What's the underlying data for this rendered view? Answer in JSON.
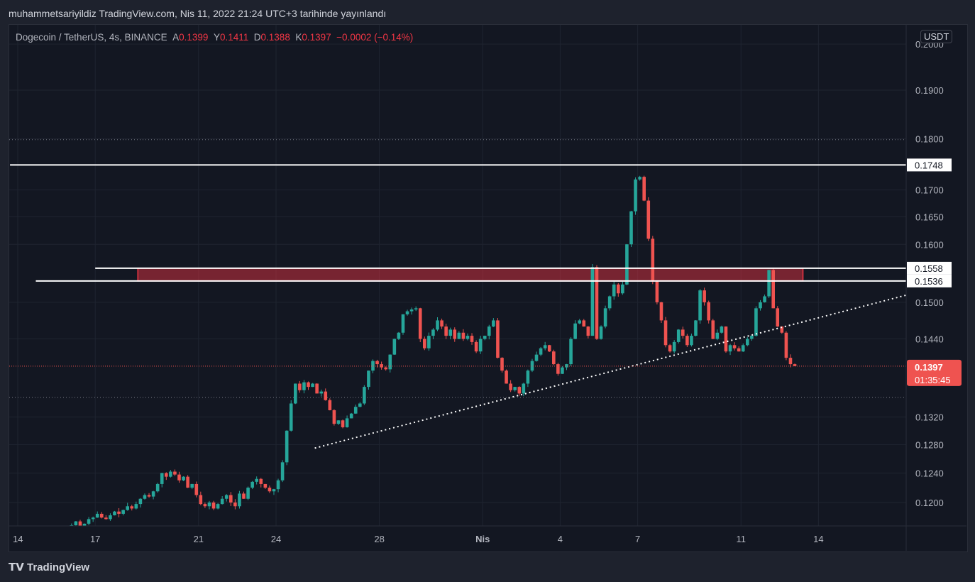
{
  "header": {
    "title": "muhammetsariyildiz TradingView.com, Nis 11, 2022 21:24 UTC+3 tarihinde yayınlandı"
  },
  "legend": {
    "symbol": "Dogecoin / TetherUS, 4s, BINANCE",
    "o_label": "A",
    "o": "0.1399",
    "h_label": "Y",
    "h": "0.1411",
    "l_label": "D",
    "l": "0.1388",
    "c_label": "K",
    "c": "0.1397",
    "change": "−0.0002 (−0.14%)"
  },
  "currency_button": "USDT",
  "logo": "TradingView",
  "countdown": "01:35:45",
  "colors": {
    "up": "#26a69a",
    "down": "#ef5350",
    "bg": "#131722",
    "zone": "#f23645"
  },
  "chart_data": {
    "type": "candlestick",
    "title": "Dogecoin / TetherUS, 4s, BINANCE",
    "scale": "log",
    "ylim": [
      0.1165,
      0.2
    ],
    "y_ticks": [
      "0.1200",
      "0.1240",
      "0.1280",
      "0.1320",
      "0.1440",
      "0.1500",
      "0.1600",
      "0.1650",
      "0.1700",
      "0.1800",
      "0.1900",
      "0.2000"
    ],
    "x_ticks": [
      {
        "label": "14",
        "day": 0
      },
      {
        "label": "17",
        "day": 3
      },
      {
        "label": "21",
        "day": 7
      },
      {
        "label": "24",
        "day": 10
      },
      {
        "label": "28",
        "day": 14
      },
      {
        "label": "Nis",
        "day": 18
      },
      {
        "label": "4",
        "day": 21
      },
      {
        "label": "7",
        "day": 24
      },
      {
        "label": "11",
        "day": 28
      },
      {
        "label": "14",
        "day": 31
      }
    ],
    "start_day": 2,
    "candles_per_day": 6,
    "open_first": 0.1168,
    "closes": [
      0.117,
      0.1175,
      0.1168,
      0.1172,
      0.1178,
      0.118,
      0.1185,
      0.118,
      0.1178,
      0.1183,
      0.1188,
      0.1185,
      0.119,
      0.1195,
      0.1192,
      0.1198,
      0.1205,
      0.121,
      0.1208,
      0.1215,
      0.1225,
      0.124,
      0.1235,
      0.1242,
      0.1238,
      0.123,
      0.1235,
      0.122,
      0.1225,
      0.121,
      0.1198,
      0.1195,
      0.12,
      0.1192,
      0.1198,
      0.1205,
      0.121,
      0.12,
      0.1195,
      0.1212,
      0.1205,
      0.122,
      0.1228,
      0.1232,
      0.1225,
      0.122,
      0.1215,
      0.1218,
      0.123,
      0.1255,
      0.13,
      0.134,
      0.137,
      0.136,
      0.1372,
      0.1365,
      0.137,
      0.1355,
      0.1358,
      0.1345,
      0.133,
      0.131,
      0.1315,
      0.1305,
      0.1318,
      0.1325,
      0.1335,
      0.134,
      0.1365,
      0.139,
      0.1405,
      0.14,
      0.1395,
      0.1392,
      0.1415,
      0.144,
      0.145,
      0.148,
      0.1485,
      0.1488,
      0.149,
      0.144,
      0.1425,
      0.1445,
      0.1455,
      0.147,
      0.146,
      0.1445,
      0.1455,
      0.144,
      0.145,
      0.144,
      0.1445,
      0.1435,
      0.142,
      0.144,
      0.1445,
      0.146,
      0.147,
      0.141,
      0.139,
      0.137,
      0.136,
      0.1365,
      0.1355,
      0.137,
      0.139,
      0.1405,
      0.1415,
      0.1425,
      0.143,
      0.142,
      0.14,
      0.1385,
      0.1395,
      0.14,
      0.144,
      0.1465,
      0.147,
      0.146,
      0.1445,
      0.156,
      0.144,
      0.146,
      0.149,
      0.151,
      0.153,
      0.1515,
      0.153,
      0.16,
      0.166,
      0.172,
      0.1725,
      0.168,
      0.161,
      0.1535,
      0.15,
      0.147,
      0.143,
      0.142,
      0.1435,
      0.1455,
      0.1445,
      0.143,
      0.1445,
      0.147,
      0.152,
      0.15,
      0.147,
      0.144,
      0.145,
      0.146,
      0.142,
      0.143,
      0.1425,
      0.142,
      0.143,
      0.144,
      0.1445,
      0.149,
      0.15,
      0.151,
      0.1555,
      0.149,
      0.146,
      0.145,
      0.141,
      0.14,
      0.1397
    ],
    "levels": [
      {
        "label": "0.1748",
        "value": 0.1748,
        "from_day": -0.3
      },
      {
        "label": "0.1558",
        "value": 0.1558,
        "from_day": 3
      },
      {
        "label": "0.1536",
        "value": 0.1536,
        "from_day": 0.7
      }
    ],
    "zone": {
      "low": 0.1536,
      "high": 0.1558,
      "from_day": 4.65,
      "to_day": 30.4
    },
    "trendline": {
      "from": {
        "day": 11.5,
        "value": 0.1275
      },
      "to": {
        "day": 34.4,
        "value": 0.1512
      }
    },
    "last_price": {
      "label": "0.1397",
      "value": 0.1397
    },
    "dotted_levels": [
      0.1798,
      0.1349
    ]
  }
}
